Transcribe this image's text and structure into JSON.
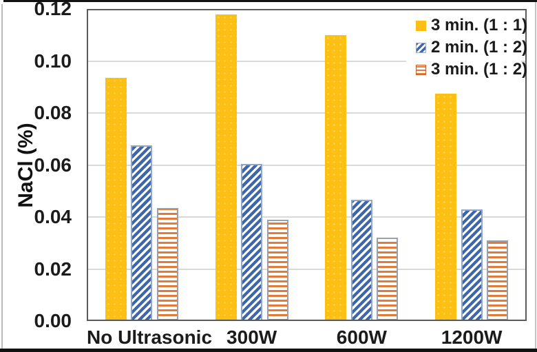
{
  "figure": {
    "background": "#ffffff",
    "frame_color": "#111111"
  },
  "chart_data": {
    "type": "bar",
    "title": "",
    "xlabel": "",
    "ylabel": "NaCl (%)",
    "categories": [
      "No Ultrasonic",
      "300W",
      "600W",
      "1200W"
    ],
    "series": [
      {
        "name": "3 min. (1 : 1)",
        "style": "solid",
        "color": "#FBC013",
        "values": [
          0.0935,
          0.118,
          0.11,
          0.0875
        ]
      },
      {
        "name": "2 min. (1 : 2)",
        "style": "diagonal-hatch",
        "color": "#3D66AB",
        "values": [
          0.0675,
          0.0605,
          0.0465,
          0.043
        ]
      },
      {
        "name": "3 min. (1 : 2)",
        "style": "horizontal-hatch",
        "color": "#E07B39",
        "values": [
          0.0435,
          0.039,
          0.032,
          0.031
        ]
      }
    ],
    "ylim": [
      0,
      0.12
    ],
    "ytick_step": 0.02,
    "yticks": [
      "0.12",
      "0.10",
      "0.08",
      "0.06",
      "0.04",
      "0.02",
      "0.00"
    ],
    "grid": true,
    "grid_color": "#d9d9d9",
    "plot_border_color": "#595959",
    "legend_position": "top-right"
  }
}
